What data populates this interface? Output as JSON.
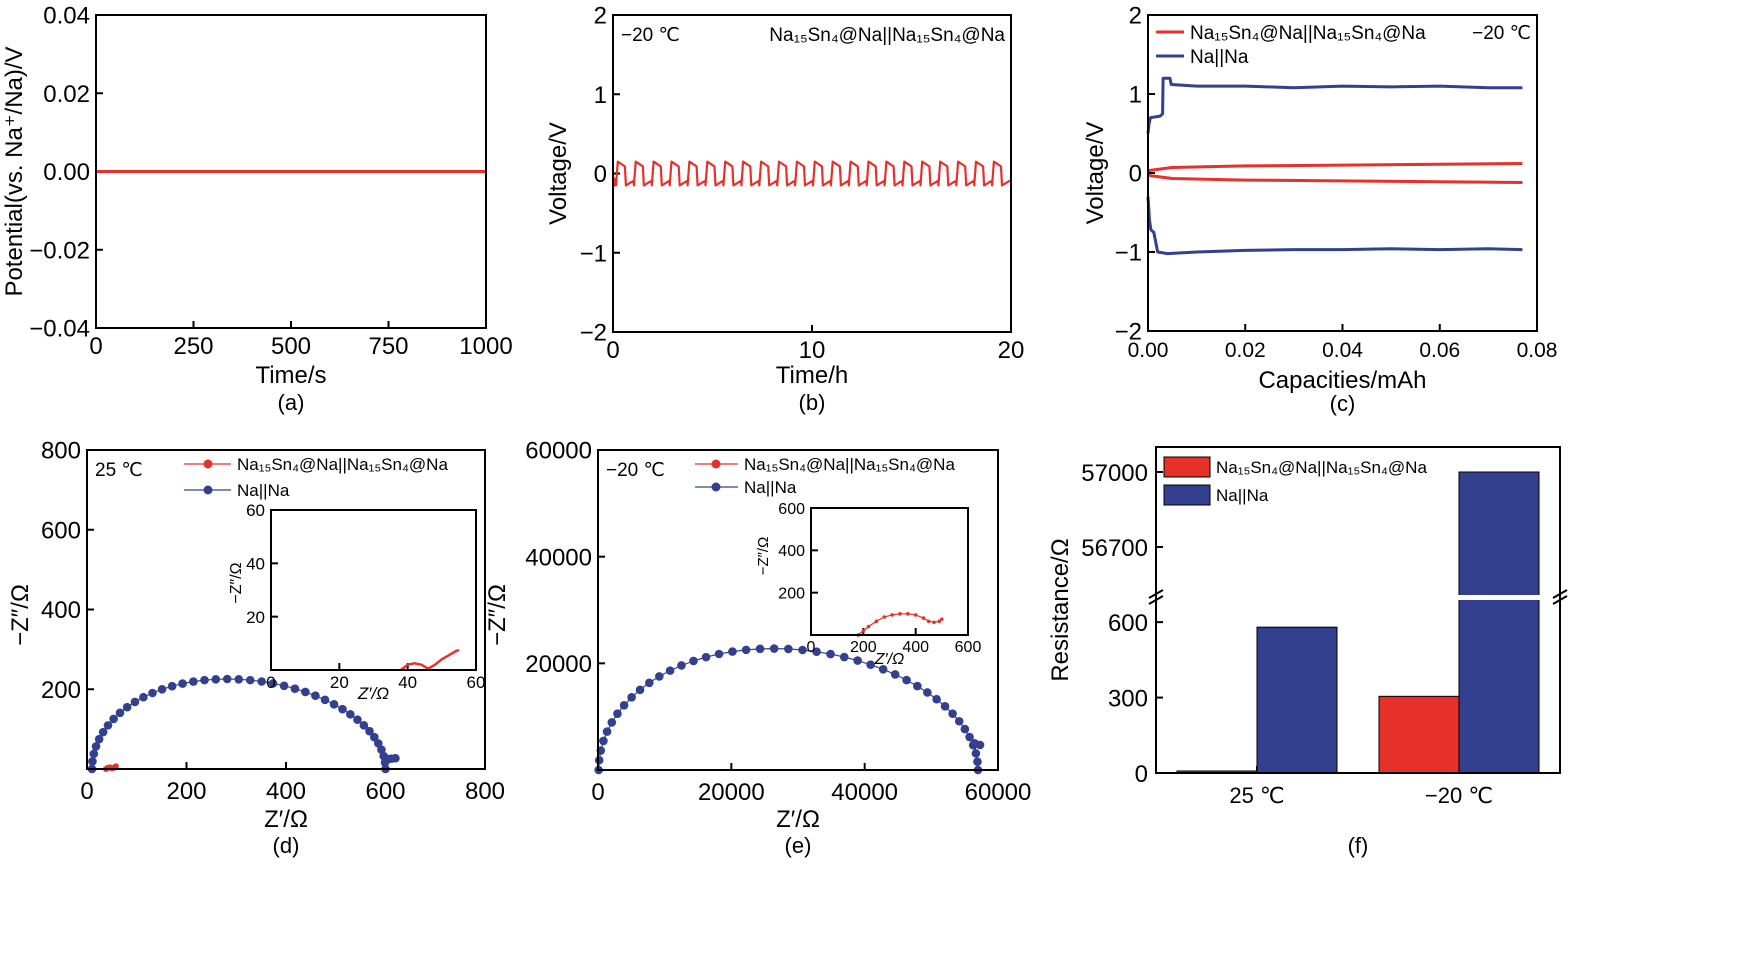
{
  "colors": {
    "red": "#e8302b",
    "blue": "#33408f",
    "axis": "#000000"
  },
  "chart_data": [
    {
      "panel": "a",
      "type": "line",
      "caption": "(a)",
      "xlabel": "Time/s",
      "ylabel": "Potential(vs. Na⁺/Na)/V",
      "xlim": [
        0,
        1000
      ],
      "ylim": [
        -0.04,
        0.04
      ],
      "xticks": [
        0,
        250,
        500,
        750,
        1000
      ],
      "xtick_labels": [
        "0",
        "250",
        "500",
        "750",
        "1000"
      ],
      "yticks": [
        -0.04,
        -0.02,
        0.0,
        0.02,
        0.04
      ],
      "ytick_labels": [
        "−0.04",
        "−0.02",
        "0.00",
        "0.02",
        "0.04"
      ],
      "series": [
        {
          "name": "potential",
          "color": "red",
          "x": [
            0,
            1000
          ],
          "y": [
            0.0,
            0.0
          ]
        }
      ]
    },
    {
      "panel": "b",
      "type": "line",
      "caption": "(b)",
      "xlabel": "Time/h",
      "ylabel": "Voltage/V",
      "xlim": [
        0,
        20
      ],
      "ylim": [
        -2,
        2
      ],
      "xticks": [
        0,
        10,
        20
      ],
      "xtick_labels": [
        "0",
        "10",
        "20"
      ],
      "yticks": [
        -2,
        -1,
        0,
        1,
        2
      ],
      "ytick_labels": [
        "−2",
        "−1",
        "0",
        "1",
        "2"
      ],
      "annotations": [
        "−20 ℃",
        "Na₁₅Sn₄@Na||Na₁₅Sn₄@Na"
      ],
      "square_wave": {
        "period_h": 0.9,
        "cycles": 22,
        "high_v": 0.15,
        "low_v": -0.15,
        "color": "red"
      }
    },
    {
      "panel": "c",
      "type": "line",
      "caption": "(c)",
      "xlabel": "Capacities/mAh",
      "ylabel": "Voltage/V",
      "xlim": [
        0,
        0.08
      ],
      "ylim": [
        -2,
        2
      ],
      "xticks": [
        0,
        0.02,
        0.04,
        0.06,
        0.08
      ],
      "xtick_labels": [
        "0.00",
        "0.02",
        "0.04",
        "0.06",
        "0.08"
      ],
      "yticks": [
        -2,
        -1,
        0,
        1,
        2
      ],
      "ytick_labels": [
        "−2",
        "−1",
        "0",
        "1",
        "2"
      ],
      "annotations": [
        "−20 ℃"
      ],
      "legend": [
        "Na₁₅Sn₄@Na||Na₁₅Sn₄@Na",
        "Na||Na"
      ],
      "series": [
        {
          "name": "Na₁₅Sn₄@Na||Na₁₅Sn₄@Na charge",
          "color": "red",
          "x": [
            0,
            0.005,
            0.02,
            0.04,
            0.06,
            0.077
          ],
          "y": [
            0.03,
            0.07,
            0.09,
            0.1,
            0.11,
            0.12
          ]
        },
        {
          "name": "Na₁₅Sn₄@Na||Na₁₅Sn₄@Na discharge",
          "color": "red",
          "x": [
            0,
            0.005,
            0.02,
            0.04,
            0.06,
            0.077
          ],
          "y": [
            -0.03,
            -0.07,
            -0.09,
            -0.1,
            -0.11,
            -0.12
          ]
        },
        {
          "name": "Na||Na charge",
          "color": "blue",
          "x": [
            0,
            0.0002,
            0.0005,
            0.0025,
            0.003,
            0.0031,
            0.0045,
            0.0048,
            0.01,
            0.02,
            0.03,
            0.04,
            0.05,
            0.06,
            0.07,
            0.077
          ],
          "y": [
            0.5,
            0.62,
            0.7,
            0.72,
            0.75,
            1.2,
            1.2,
            1.12,
            1.1,
            1.1,
            1.08,
            1.1,
            1.09,
            1.1,
            1.08,
            1.08
          ]
        },
        {
          "name": "Na||Na discharge",
          "color": "blue",
          "x": [
            0,
            0.0003,
            0.0006,
            0.0012,
            0.002,
            0.004,
            0.01,
            0.02,
            0.03,
            0.04,
            0.05,
            0.06,
            0.07,
            0.077
          ],
          "y": [
            -0.3,
            -0.6,
            -0.72,
            -0.75,
            -1.0,
            -1.02,
            -1.0,
            -0.98,
            -0.97,
            -0.97,
            -0.96,
            -0.97,
            -0.96,
            -0.97
          ]
        }
      ]
    },
    {
      "panel": "d",
      "type": "scatter",
      "caption": "(d)",
      "xlabel": "Z′/Ω",
      "ylabel": "−Z″/Ω",
      "xlim": [
        0,
        800
      ],
      "ylim": [
        0,
        800
      ],
      "xticks": [
        0,
        200,
        400,
        600,
        800
      ],
      "xtick_labels": [
        "0",
        "200",
        "400",
        "600",
        "800"
      ],
      "yticks": [
        200,
        400,
        600,
        800
      ],
      "ytick_labels": [
        "200",
        "400",
        "600",
        "800"
      ],
      "annotations": [
        "25 ℃"
      ],
      "legend": [
        "Na₁₅Sn₄@Na||Na₁₅Sn₄@Na",
        "Na||Na"
      ],
      "series": [
        {
          "name": "Na₁₅Sn₄@Na||Na₁₅Sn₄@Na",
          "color": "red",
          "x": [
            38,
            42,
            46,
            50,
            54,
            58
          ],
          "y": [
            0,
            3,
            4,
            2,
            3,
            7
          ]
        },
        {
          "name": "Na||Na",
          "color": "blue",
          "arc": {
            "x_start": 10,
            "x_end": 600,
            "peak_x": 290,
            "peak_y": 225,
            "points": 40
          },
          "tail": {
            "x": [
              605,
              612,
              620
            ],
            "y": [
              25,
              26,
              27
            ]
          }
        }
      ],
      "inset": {
        "xlim": [
          0,
          60
        ],
        "ylim": [
          0,
          60
        ],
        "xticks": [
          0,
          20,
          40,
          60
        ],
        "xtick_labels": [
          "0",
          "20",
          "40",
          "60"
        ],
        "yticks": [
          20,
          40,
          60
        ],
        "ytick_labels": [
          "20",
          "40",
          "60"
        ],
        "xlabel": "Z′/Ω",
        "ylabel": "−Z″/Ω",
        "series": [
          {
            "color": "red",
            "x": [
              38,
              40,
              42,
              44,
              46,
              48,
              50,
              52,
              54,
              55
            ],
            "y": [
              0,
              2,
              2.5,
              2,
              0.5,
              2,
              4,
              5.5,
              7,
              7.5
            ]
          }
        ]
      }
    },
    {
      "panel": "e",
      "type": "scatter",
      "caption": "(e)",
      "xlabel": "Z′/Ω",
      "ylabel": "−Z″/Ω",
      "xlim": [
        0,
        60000
      ],
      "ylim": [
        0,
        60000
      ],
      "xticks": [
        0,
        20000,
        40000,
        60000
      ],
      "xtick_labels": [
        "0",
        "20000",
        "40000",
        "60000"
      ],
      "yticks": [
        20000,
        40000,
        60000
      ],
      "ytick_labels": [
        "20000",
        "40000",
        "60000"
      ],
      "annotations": [
        "−20 ℃"
      ],
      "legend": [
        "Na₁₅Sn₄@Na||Na₁₅Sn₄@Na",
        "Na||Na"
      ],
      "series": [
        {
          "name": "Na||Na",
          "color": "blue",
          "arc": {
            "x_start": 100,
            "x_end": 57000,
            "peak_x": 28000,
            "peak_y": 22700,
            "points": 42
          },
          "tail": {
            "x": [
              56500,
              57300
            ],
            "y": [
              5000,
              4700
            ]
          }
        }
      ],
      "inset": {
        "xlim": [
          0,
          600
        ],
        "ylim": [
          0,
          600
        ],
        "xticks": [
          0,
          200,
          400,
          600
        ],
        "xtick_labels": [
          "0",
          "200",
          "400",
          "600"
        ],
        "yticks": [
          200,
          400,
          600
        ],
        "ytick_labels": [
          "200",
          "400",
          "600"
        ],
        "xlabel": "Z′/Ω",
        "ylabel": "−Z″/Ω",
        "series": [
          {
            "color": "red",
            "x": [
              180,
              200,
              220,
              250,
              280,
              310,
              340,
              370,
              400,
              430,
              450,
              470,
              490,
              500
            ],
            "y": [
              0,
              20,
              40,
              65,
              85,
              95,
              100,
              100,
              95,
              80,
              65,
              60,
              65,
              75
            ]
          }
        ]
      }
    },
    {
      "panel": "f",
      "type": "bar",
      "caption": "(f)",
      "ylabel": "Resistance/Ω",
      "categories": [
        "25 ℃",
        "−20 ℃"
      ],
      "series": [
        {
          "name": "Na₁₅Sn₄@Na||Na₁₅Sn₄@Na",
          "color": "red",
          "values": [
            8,
            305
          ]
        },
        {
          "name": "Na||Na",
          "color": "blue",
          "values": [
            580,
            57000
          ]
        }
      ],
      "broken_axis": {
        "lower": [
          0,
          700
        ],
        "upper": [
          56500,
          57100
        ]
      },
      "yticks_lower": [
        0,
        300,
        600
      ],
      "ytick_labels_lower": [
        "0",
        "300",
        "600"
      ],
      "yticks_upper": [
        56700,
        57000
      ],
      "ytick_labels_upper": [
        "56700",
        "57000"
      ],
      "legend": [
        "Na₁₅Sn₄@Na||Na₁₅Sn₄@Na",
        "Na||Na"
      ]
    }
  ]
}
